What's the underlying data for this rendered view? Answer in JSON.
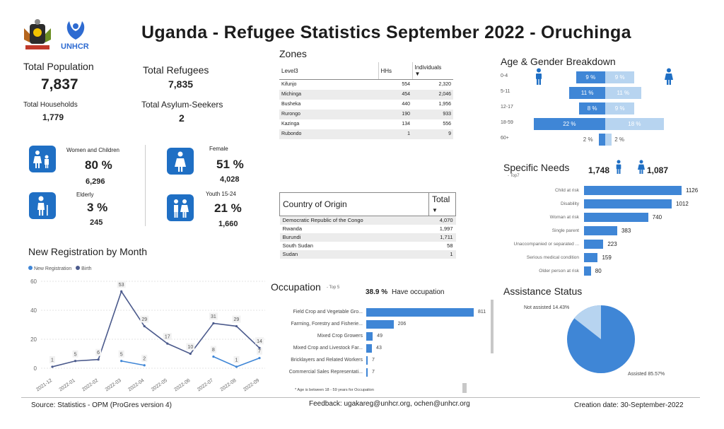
{
  "title": "Uganda - Refugee Statistics September 2022 - Oruchinga",
  "logo_text": "UNHCR",
  "kpis": {
    "total_population_label": "Total Population",
    "total_population": "7,837",
    "total_households_label": "Total Households",
    "total_households": "1,779",
    "total_refugees_label": "Total Refugees",
    "total_refugees": "7,835",
    "total_asylum_label": "Total Asylum-Seekers",
    "total_asylum": "2"
  },
  "tiles": [
    {
      "label": "Women and Children",
      "pct": "80 %",
      "count": "6,296",
      "icon": "women-children-icon"
    },
    {
      "label": "Female",
      "pct": "51 %",
      "count": "4,028",
      "icon": "female-icon"
    },
    {
      "label": "Elderly",
      "pct": "3 %",
      "count": "245",
      "icon": "elderly-icon"
    },
    {
      "label": "Youth 15-24",
      "pct": "21 %",
      "count": "1,660",
      "icon": "youth-icon"
    }
  ],
  "zones": {
    "title": "Zones",
    "headers": [
      "Level3",
      "HHs",
      "Individuals"
    ],
    "rows": [
      [
        "Kifunjo",
        "554",
        "2,320"
      ],
      [
        "Michinga",
        "454",
        "2,046"
      ],
      [
        "Busheka",
        "440",
        "1,956"
      ],
      [
        "Rurongo",
        "190",
        "933"
      ],
      [
        "Kazinga",
        "134",
        "556"
      ],
      [
        "Rubondo",
        "1",
        "9"
      ]
    ]
  },
  "country_of_origin": {
    "headers": [
      "Country of Origin",
      "Total"
    ],
    "rows": [
      [
        "Democratic Republic of the Congo",
        "4,070"
      ],
      [
        "Rwanda",
        "1,997"
      ],
      [
        "Burundi",
        "1,711"
      ],
      [
        "South Sudan",
        "58"
      ],
      [
        "Sudan",
        "1"
      ]
    ]
  },
  "age_gender": {
    "title": "Age & Gender Breakdown",
    "groups": [
      "0-4",
      "5-11",
      "12-17",
      "18-59",
      "60+"
    ],
    "male_pct": [
      9,
      11,
      8,
      22,
      2
    ],
    "female_pct": [
      9,
      11,
      9,
      18,
      2
    ],
    "male_labels": [
      "9 %",
      "11 %",
      "8 %",
      "22 %",
      "2 %"
    ],
    "female_labels": [
      "9 %",
      "11 %",
      "9 %",
      "18 %",
      "2 %"
    ],
    "male_color": "#3f86d6",
    "female_color": "#b7d4f0"
  },
  "specific_needs": {
    "title": "Specific Needs",
    "subtitle": "- Top7",
    "male_total": "1,748",
    "female_total": "1,087",
    "items": [
      {
        "label": "Child at risk",
        "value": 1126
      },
      {
        "label": "Disability",
        "value": 1012
      },
      {
        "label": "Woman at risk",
        "value": 740
      },
      {
        "label": "Single parent",
        "value": 383
      },
      {
        "label": "Unaccompanied or separated ...",
        "value": 223
      },
      {
        "label": "Serious medical condition",
        "value": 159
      },
      {
        "label": "Older person at risk",
        "value": 80
      }
    ],
    "value_labels": [
      "1126",
      "1012",
      "740",
      "383",
      "223",
      "159",
      "80"
    ]
  },
  "occupation": {
    "title": "Occupation",
    "subtitle": "- Top 5",
    "have_pct": "38.9 %",
    "have_label": "Have occupation",
    "note": "* Age is between 18 - 59 years for Occupation",
    "items": [
      {
        "label": "Field Crop and Vegetable Gro...",
        "value": 811
      },
      {
        "label": "Farming, Forestry and Fisherie...",
        "value": 206
      },
      {
        "label": "Mixed Crop Growers",
        "value": 49
      },
      {
        "label": "Mixed Crop and Livestock Far...",
        "value": 43
      },
      {
        "label": "Bricklayers and Related Workers",
        "value": 7
      },
      {
        "label": "Commercial Sales Representati...",
        "value": 7
      }
    ],
    "value_labels": [
      "811",
      "206",
      "49",
      "43",
      "7",
      "7"
    ]
  },
  "assistance": {
    "title": "Assistance Status",
    "not_assisted_label": "Not assisted 14.43%",
    "assisted_label": "Assisted 85.57%",
    "not_assisted_pct": 14.43,
    "assisted_pct": 85.57,
    "assisted_color": "#3f86d6",
    "not_assisted_color": "#b7d4f0"
  },
  "chart_data": {
    "type": "line",
    "title": "New Registration by Month",
    "categories": [
      "2021-12",
      "2022-01",
      "2022-02",
      "2022-03",
      "2022-04",
      "2022-05",
      "2022-06",
      "2022-07",
      "2022-08",
      "2022-09"
    ],
    "series": [
      {
        "name": "New Registration",
        "color": "#3f86d6",
        "values": [
          null,
          null,
          null,
          5,
          2,
          null,
          null,
          8,
          1,
          7
        ]
      },
      {
        "name": "Birth",
        "color": "#4b5a8c",
        "values": [
          1,
          5,
          6,
          53,
          29,
          17,
          10,
          31,
          29,
          14
        ]
      }
    ],
    "ylim": [
      0,
      60
    ],
    "yticks": [
      "0",
      "20",
      "40",
      "60"
    ],
    "legend": "top-left"
  },
  "footer": {
    "source": "Source: Statistics - OPM (ProGres version 4)",
    "feedback": "Feedback: ugakareg@unhcr.org, ochen@unhcr.org",
    "creation": "Creation date: 30-September-2022"
  }
}
